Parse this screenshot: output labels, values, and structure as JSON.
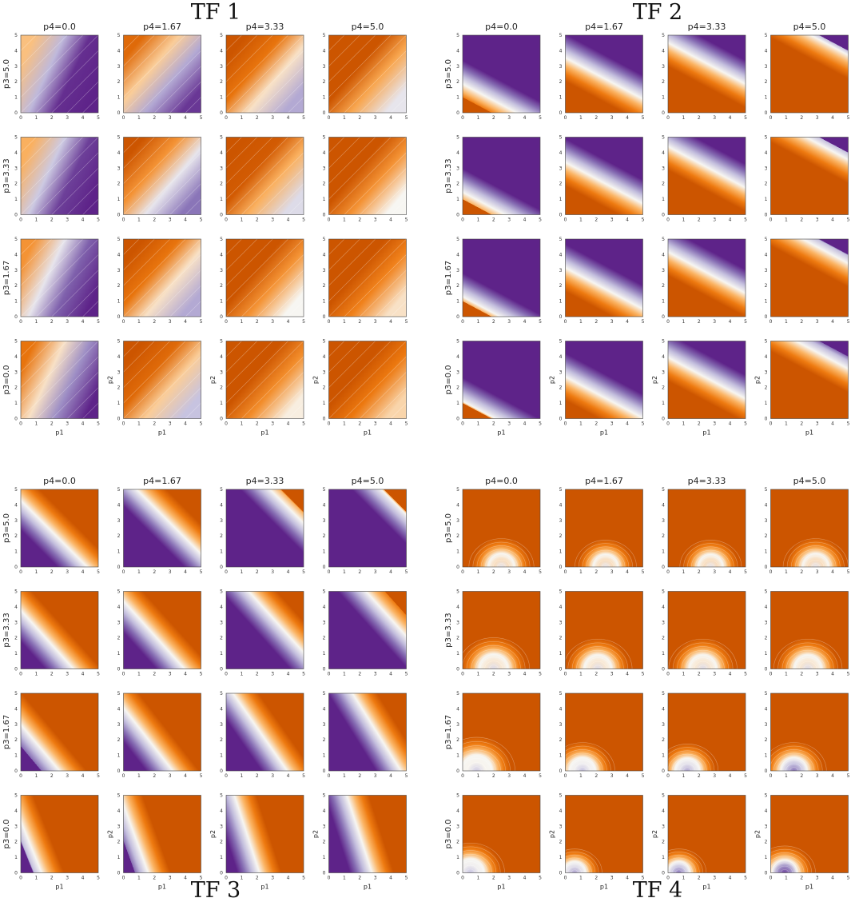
{
  "figure": {
    "panels": [
      {
        "title": "TF 1",
        "title_position": "top",
        "tf": 1
      },
      {
        "title": "TF 2",
        "title_position": "top",
        "tf": 2
      },
      {
        "title": "TF 3",
        "title_position": "bottom",
        "tf": 3
      },
      {
        "title": "TF 4",
        "title_position": "bottom",
        "tf": 4
      }
    ],
    "column_titles": [
      "p4=0.0",
      "p4=1.67",
      "p4=3.33",
      "p4=5.0"
    ],
    "row_labels": [
      "p3=5.0",
      "p3=3.33",
      "p3=1.67",
      "p3=0.0"
    ],
    "xlabel": "p1",
    "ylabel": "p2",
    "ticks": [
      "0",
      "1",
      "2",
      "3",
      "4",
      "5"
    ],
    "colors": {
      "dark_orange": "#cc5500",
      "orange": "#ee7a10",
      "light_orange": "#fbb464",
      "white": "#f7f6f2",
      "lavender": "#c7c3e0",
      "medium_purple": "#8a75b8",
      "dark_purple": "#5e2389"
    }
  },
  "chart_data": {
    "type": "heatmap",
    "title": "",
    "xlabel": "p1",
    "ylabel": "p2",
    "x_range": [
      0,
      5
    ],
    "y_range": [
      0,
      5
    ],
    "facet_columns": {
      "parameter": "p4",
      "values": [
        0.0,
        1.67,
        3.33,
        5.0
      ]
    },
    "facet_rows": {
      "parameter": "p3",
      "values": [
        5.0,
        3.33,
        1.67,
        0.0
      ]
    },
    "colormap": "PuOr",
    "panels": [
      "TF 1",
      "TF 2",
      "TF 3",
      "TF 4"
    ]
  }
}
